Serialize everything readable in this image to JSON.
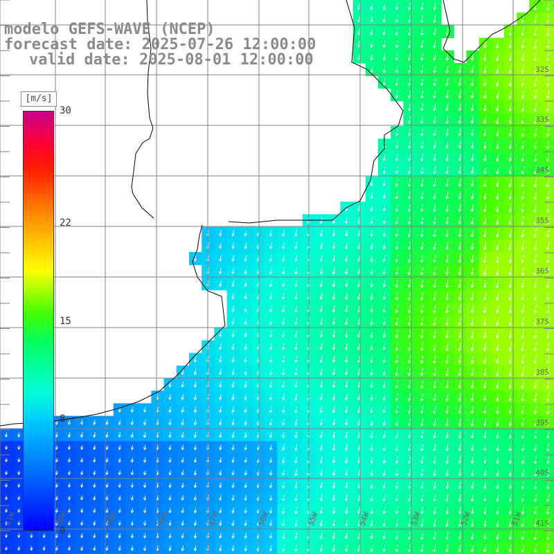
{
  "titles": {
    "line1": "modelo GEFS-WAVE (NCEP)",
    "line2": "forecast date: 2025-07-26 12:00:00",
    "line3": "valid date: 2025-08-01 12:00:00"
  },
  "colorbar": {
    "unit": "[m/s]",
    "min": 0,
    "max": 30,
    "ticks": [
      {
        "value": 30,
        "label": "30"
      },
      {
        "value": 22,
        "label": "22"
      },
      {
        "value": 15,
        "label": "15"
      },
      {
        "value": 8,
        "label": "8"
      },
      {
        "value": 0,
        "label": "0"
      }
    ]
  },
  "map": {
    "lat_labels": [
      "32S",
      "33S",
      "34S",
      "35S",
      "36S",
      "37S",
      "38S",
      "39S",
      "40S",
      "41S"
    ],
    "lon_labels": [
      "61W",
      "60W",
      "59W",
      "58W",
      "57W",
      "56W",
      "55W",
      "54W",
      "53W",
      "52W",
      "51W"
    ],
    "colors": {
      "land": "#ffffff",
      "coastline": "#000000",
      "grid": "#808080",
      "arrows": "#ffffff"
    }
  }
}
